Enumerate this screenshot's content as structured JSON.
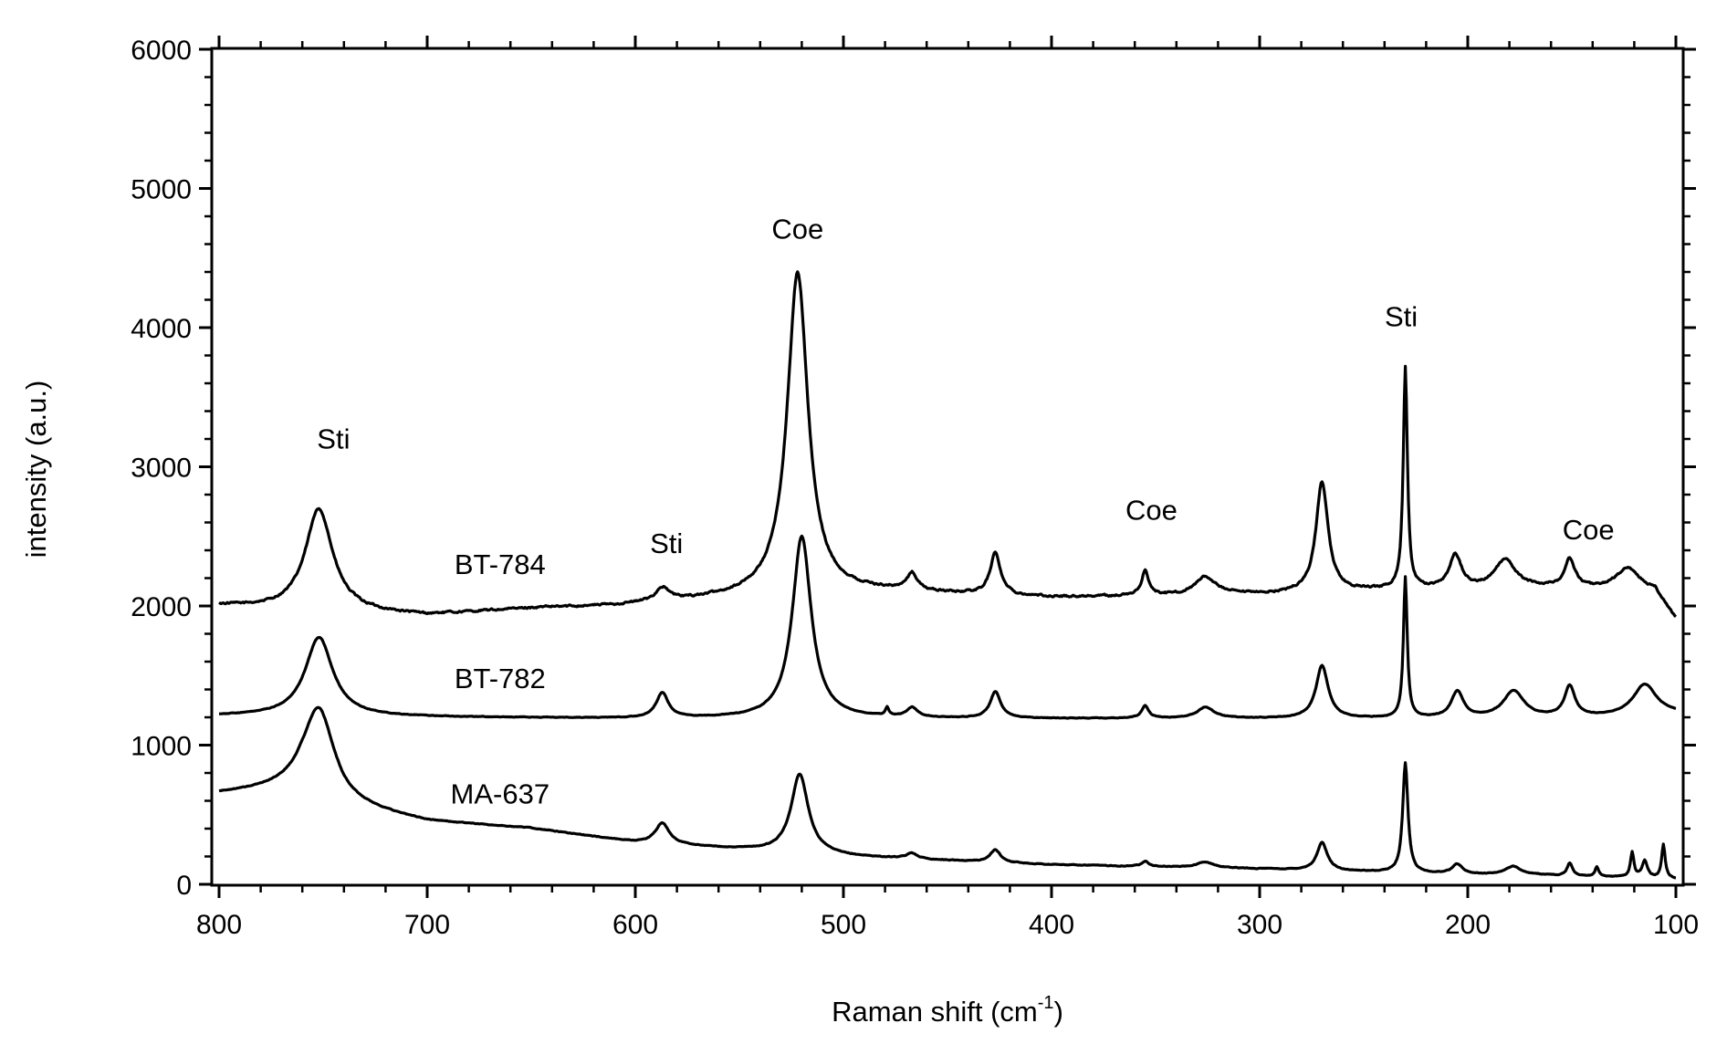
{
  "chart_data": {
    "type": "line",
    "xlabel": "Raman shift (cm",
    "xlabel_sup": "-1",
    "xlabel_close": ")",
    "ylabel": "intensity (a.u.)",
    "xlim": [
      800,
      100
    ],
    "ylim": [
      0,
      6000
    ],
    "grid": false,
    "xticks": [
      800,
      700,
      600,
      500,
      400,
      300,
      200,
      100
    ],
    "yticks": [
      0,
      1000,
      2000,
      3000,
      4000,
      5000,
      6000
    ],
    "series": [
      {
        "name": "BT-784",
        "baseline": [
          [
            800,
            2000
          ],
          [
            760,
            1960
          ],
          [
            720,
            1940
          ],
          [
            700,
            1930
          ],
          [
            650,
            1980
          ],
          [
            610,
            2000
          ],
          [
            560,
            2050
          ],
          [
            530,
            2080
          ],
          [
            480,
            2100
          ],
          [
            400,
            2060
          ],
          [
            300,
            2080
          ],
          [
            240,
            2110
          ],
          [
            200,
            2120
          ],
          [
            160,
            2130
          ],
          [
            110,
            2100
          ],
          [
            100,
            1900
          ]
        ],
        "noise": 14,
        "peaks": [
          {
            "x": 752,
            "height": 740,
            "width": 8
          },
          {
            "x": 587,
            "height": 95,
            "width": 4
          },
          {
            "x": 522,
            "height": 2310,
            "width": 6
          },
          {
            "x": 467,
            "height": 120,
            "width": 3
          },
          {
            "x": 427,
            "height": 300,
            "width": 3
          },
          {
            "x": 355,
            "height": 180,
            "width": 2
          },
          {
            "x": 326,
            "height": 130,
            "width": 6
          },
          {
            "x": 270,
            "height": 790,
            "width": 3.5
          },
          {
            "x": 230,
            "height": 1590,
            "width": 1.2
          },
          {
            "x": 206,
            "height": 240,
            "width": 3.5
          },
          {
            "x": 182,
            "height": 200,
            "width": 6
          },
          {
            "x": 151,
            "height": 200,
            "width": 3
          },
          {
            "x": 123,
            "height": 160,
            "width": 7
          }
        ]
      },
      {
        "name": "BT-782",
        "baseline": [
          [
            800,
            1210
          ],
          [
            600,
            1190
          ],
          [
            400,
            1190
          ],
          [
            200,
            1190
          ],
          [
            120,
            1200
          ],
          [
            100,
            1220
          ]
        ],
        "noise": 4,
        "peaks": [
          {
            "x": 752,
            "height": 570,
            "width": 8
          },
          {
            "x": 587,
            "height": 180,
            "width": 3.5
          },
          {
            "x": 520,
            "height": 1310,
            "width": 5.5
          },
          {
            "x": 479,
            "height": 60,
            "width": 1
          },
          {
            "x": 467,
            "height": 70,
            "width": 3
          },
          {
            "x": 427,
            "height": 190,
            "width": 3
          },
          {
            "x": 355,
            "height": 90,
            "width": 2
          },
          {
            "x": 326,
            "height": 80,
            "width": 5
          },
          {
            "x": 270,
            "height": 380,
            "width": 3.5
          },
          {
            "x": 230,
            "height": 1010,
            "width": 1.1
          },
          {
            "x": 205,
            "height": 190,
            "width": 3.5
          },
          {
            "x": 178,
            "height": 190,
            "width": 6
          },
          {
            "x": 151,
            "height": 220,
            "width": 3
          },
          {
            "x": 115,
            "height": 230,
            "width": 7
          }
        ]
      },
      {
        "name": "MA-637",
        "baseline": [
          [
            800,
            650
          ],
          [
            760,
            690
          ],
          [
            740,
            560
          ],
          [
            700,
            450
          ],
          [
            650,
            400
          ],
          [
            600,
            300
          ],
          [
            560,
            260
          ],
          [
            500,
            200
          ],
          [
            400,
            140
          ],
          [
            300,
            110
          ],
          [
            200,
            70
          ],
          [
            150,
            60
          ],
          [
            100,
            40
          ]
        ],
        "noise": 5,
        "peaks": [
          {
            "x": 752,
            "height": 630,
            "width": 9
          },
          {
            "x": 587,
            "height": 150,
            "width": 4
          },
          {
            "x": 521,
            "height": 570,
            "width": 5
          },
          {
            "x": 467,
            "height": 40,
            "width": 3
          },
          {
            "x": 427,
            "height": 90,
            "width": 3
          },
          {
            "x": 355,
            "height": 40,
            "width": 2
          },
          {
            "x": 326,
            "height": 40,
            "width": 5
          },
          {
            "x": 270,
            "height": 200,
            "width": 3
          },
          {
            "x": 230,
            "height": 790,
            "width": 1.5
          },
          {
            "x": 205,
            "height": 70,
            "width": 3
          },
          {
            "x": 178,
            "height": 60,
            "width": 5
          },
          {
            "x": 151,
            "height": 90,
            "width": 1.5
          },
          {
            "x": 138,
            "height": 70,
            "width": 1
          },
          {
            "x": 121,
            "height": 180,
            "width": 1
          },
          {
            "x": 115,
            "height": 120,
            "width": 1.5
          },
          {
            "x": 106,
            "height": 240,
            "width": 1
          }
        ]
      }
    ],
    "annotations": [
      {
        "text": "Sti",
        "x": 745,
        "y": 3130
      },
      {
        "text": "Sti",
        "x": 585,
        "y": 2380
      },
      {
        "text": "Coe",
        "x": 522,
        "y": 4640
      },
      {
        "text": "Coe",
        "x": 352,
        "y": 2620
      },
      {
        "text": "Sti",
        "x": 232,
        "y": 4010
      },
      {
        "text": "Coe",
        "x": 142,
        "y": 2480
      },
      {
        "text": "BT-784",
        "x": 665,
        "y": 2230
      },
      {
        "text": "BT-782",
        "x": 665,
        "y": 1410
      },
      {
        "text": "MA-637",
        "x": 665,
        "y": 580
      }
    ]
  }
}
